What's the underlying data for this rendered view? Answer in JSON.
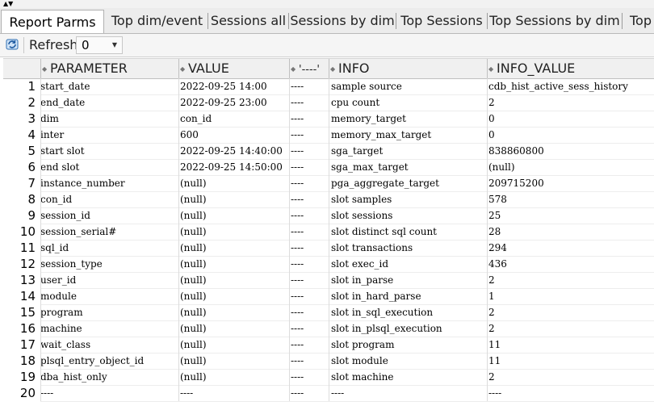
{
  "tabs": [
    {
      "label": "Report Parms",
      "active": true
    },
    {
      "label": "Top dim/event"
    },
    {
      "label": "Sessions all"
    },
    {
      "label": "Sessions by dim"
    },
    {
      "label": "Top Sessions"
    },
    {
      "label": "Top Sessions by dim"
    },
    {
      "label": "Top"
    }
  ],
  "toolbar": {
    "refresh_label": "Refresh:",
    "refresh_value": "0"
  },
  "columns": [
    "PARAMETER",
    "VALUE",
    "'----'",
    "INFO",
    "INFO_VALUE"
  ],
  "rows": [
    {
      "n": "1",
      "parameter": "start_date",
      "value": "2022-09-25 14:00",
      "sep": "----",
      "info": "sample source",
      "info_value": "cdb_hist_active_sess_history"
    },
    {
      "n": "2",
      "parameter": "end_date",
      "value": "2022-09-25 23:00",
      "sep": "----",
      "info": "cpu count",
      "info_value": "2"
    },
    {
      "n": "3",
      "parameter": "dim",
      "value": "con_id",
      "sep": "----",
      "info": "memory_target",
      "info_value": "0"
    },
    {
      "n": "4",
      "parameter": "inter",
      "value": "600",
      "sep": "----",
      "info": "memory_max_target",
      "info_value": "0"
    },
    {
      "n": "5",
      "parameter": "start slot",
      "value": "2022-09-25 14:40:00",
      "sep": "----",
      "info": "sga_target",
      "info_value": "838860800"
    },
    {
      "n": "6",
      "parameter": "end   slot",
      "value": "2022-09-25 14:50:00",
      "sep": "----",
      "info": "sga_max_target",
      "info_value": "(null)"
    },
    {
      "n": "7",
      "parameter": "instance_number",
      "value": "(null)",
      "sep": "----",
      "info": "pga_aggregate_target",
      "info_value": "209715200"
    },
    {
      "n": "8",
      "parameter": "con_id",
      "value": "(null)",
      "sep": "----",
      "info": "slot samples",
      "info_value": "578"
    },
    {
      "n": "9",
      "parameter": "session_id",
      "value": "(null)",
      "sep": "----",
      "info": "slot sessions",
      "info_value": "25"
    },
    {
      "n": "10",
      "parameter": "session_serial#",
      "value": "(null)",
      "sep": "----",
      "info": "slot distinct sql count",
      "info_value": "28"
    },
    {
      "n": "11",
      "parameter": "sql_id",
      "value": "(null)",
      "sep": "----",
      "info": "slot transactions",
      "info_value": "294"
    },
    {
      "n": "12",
      "parameter": "session_type",
      "value": "(null)",
      "sep": "----",
      "info": "slot exec_id",
      "info_value": "436"
    },
    {
      "n": "13",
      "parameter": "user_id",
      "value": "(null)",
      "sep": "----",
      "info": "slot in_parse",
      "info_value": "2"
    },
    {
      "n": "14",
      "parameter": "module",
      "value": "(null)",
      "sep": "----",
      "info": "slot in_hard_parse",
      "info_value": "1"
    },
    {
      "n": "15",
      "parameter": "program",
      "value": "(null)",
      "sep": "----",
      "info": "slot in_sql_execution",
      "info_value": "2"
    },
    {
      "n": "16",
      "parameter": "machine",
      "value": "(null)",
      "sep": "----",
      "info": "slot in_plsql_execution",
      "info_value": "2"
    },
    {
      "n": "17",
      "parameter": "wait_class",
      "value": "(null)",
      "sep": "----",
      "info": "slot program",
      "info_value": "11"
    },
    {
      "n": "18",
      "parameter": "plsql_entry_object_id",
      "value": "(null)",
      "sep": "----",
      "info": "slot module",
      "info_value": "11"
    },
    {
      "n": "19",
      "parameter": "dba_hist_only",
      "value": "(null)",
      "sep": "----",
      "info": "slot machine",
      "info_value": "2"
    },
    {
      "n": "20",
      "parameter": "----",
      "value": "----",
      "sep": "----",
      "info": "----",
      "info_value": "----"
    }
  ]
}
